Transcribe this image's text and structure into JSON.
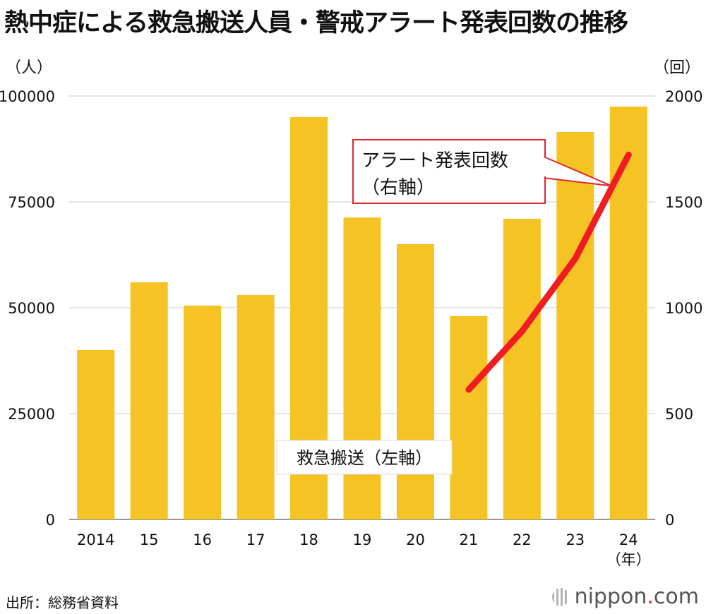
{
  "title": "熱中症による救急搬送人員・警戒アラート発表回数の推移",
  "left_unit": "（人）",
  "right_unit": "（回）",
  "source": "出所：総務省資料",
  "brand": {
    "name": "nippon",
    "dot": ".",
    "tld": "com"
  },
  "colors": {
    "bar": "#f5c424",
    "line": "#ef1c23",
    "callout_border": "#e2262f",
    "grid": "#c9c9c9"
  },
  "chart_data": {
    "type": "bar",
    "categories": [
      "2014",
      "15",
      "16",
      "17",
      "18",
      "19",
      "20",
      "21",
      "22",
      "23",
      "24"
    ],
    "x_unit": "（年）",
    "series": [
      {
        "name": "救急搬送",
        "axis": "left",
        "type": "bar",
        "values": [
          40000,
          56000,
          50500,
          53000,
          95000,
          71300,
          65000,
          48000,
          71000,
          91500,
          97500
        ]
      },
      {
        "name": "アラート発表回数",
        "axis": "right",
        "type": "line",
        "values": [
          null,
          null,
          null,
          null,
          null,
          null,
          null,
          613,
          889,
          1232,
          1722
        ]
      }
    ],
    "y_left": {
      "range": [
        0,
        100000
      ],
      "ticks": [
        "0",
        "25000",
        "50000",
        "75000",
        "100000"
      ]
    },
    "y_right": {
      "range": [
        0,
        2000
      ],
      "ticks": [
        "0",
        "500",
        "1000",
        "1500",
        "2000"
      ]
    },
    "annotations": {
      "bar_label": "救急搬送（左軸）",
      "line_label_line1": "アラート発表回数",
      "line_label_line2": "（右軸）"
    }
  }
}
